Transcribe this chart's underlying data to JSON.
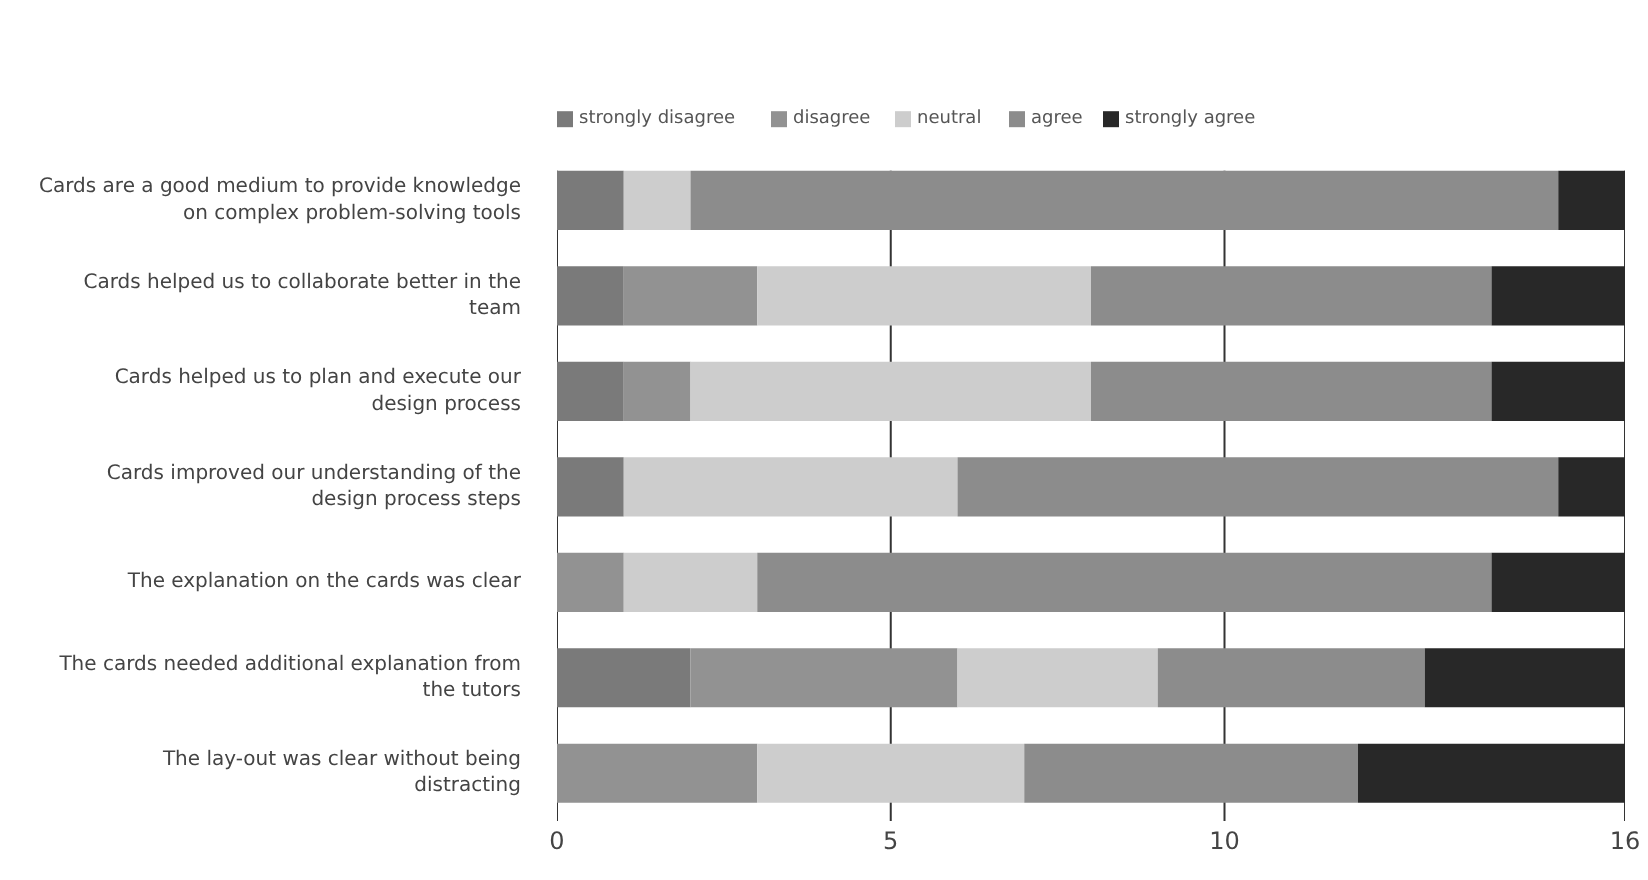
{
  "chart_data": {
    "type": "bar",
    "orientation": "horizontal",
    "stacked": true,
    "categories": [
      "Cards are a good medium to provide knowledge on complex problem-solving tools",
      "Cards helped us to collaborate better in the team",
      "Cards helped us to plan and execute our design process",
      "Cards improved our understanding of the design process steps",
      "The explanation on the cards was clear",
      "The cards needed additional explanation from the tutors",
      "The lay-out was clear without being distracting"
    ],
    "series": [
      {
        "name": "strongly disagree",
        "color": "#7a7a7a",
        "values": [
          1,
          1,
          1,
          1,
          0,
          2,
          0
        ]
      },
      {
        "name": "disagree",
        "color": "#929292",
        "values": [
          0,
          2,
          1,
          0,
          1,
          4,
          3
        ]
      },
      {
        "name": "neutral",
        "color": "#cdcdcd",
        "values": [
          1,
          5,
          6,
          5,
          2,
          3,
          4
        ]
      },
      {
        "name": "agree",
        "color": "#8c8c8c",
        "values": [
          13,
          6,
          6,
          9,
          11,
          4,
          5
        ]
      },
      {
        "name": "strongly agree",
        "color": "#282828",
        "values": [
          1,
          2,
          2,
          1,
          2,
          3,
          4
        ]
      }
    ],
    "xlim": [
      0,
      16
    ],
    "xticks": [
      0,
      5,
      10,
      16
    ],
    "grid": "x",
    "legend": "top left"
  }
}
